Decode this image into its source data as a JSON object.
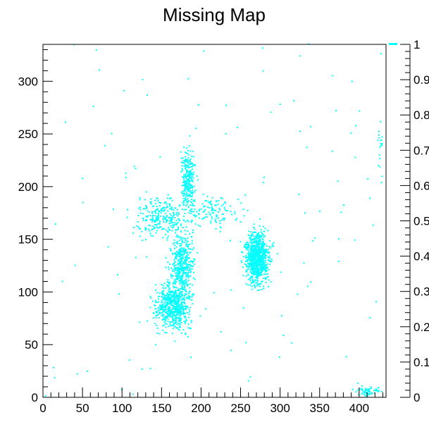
{
  "chart_data": {
    "type": "heatmap",
    "title": "Missing Map",
    "xlabel": "",
    "ylabel": "",
    "xlim": [
      0,
      434
    ],
    "ylim": [
      0,
      335
    ],
    "xticks": [
      0,
      50,
      100,
      150,
      200,
      250,
      300,
      350,
      400
    ],
    "yticks": [
      0,
      50,
      100,
      150,
      200,
      250,
      300
    ],
    "zlim": [
      0,
      1
    ],
    "zticks": [
      "0",
      "0.1",
      "0.2",
      "0.3",
      "0.4",
      "0.5",
      "0.6",
      "0.7",
      "0.8",
      "0.9",
      "1"
    ],
    "grid": false,
    "palette": {
      "cell_color": "#00ffff",
      "frame_color": "#000000"
    },
    "clusters": [
      {
        "center": [
          165,
          85
        ],
        "spread": [
          16,
          15
        ],
        "density": 650
      },
      {
        "center": [
          175,
          125
        ],
        "spread": [
          10,
          20
        ],
        "density": 420
      },
      {
        "center": [
          183,
          205
        ],
        "spread": [
          6,
          22
        ],
        "density": 260
      },
      {
        "center": [
          150,
          170
        ],
        "spread": [
          24,
          13
        ],
        "density": 260
      },
      {
        "center": [
          270,
          132
        ],
        "spread": [
          10,
          17
        ],
        "density": 900
      },
      {
        "center": [
          215,
          175
        ],
        "spread": [
          30,
          10
        ],
        "density": 120
      },
      {
        "center": [
          410,
          5
        ],
        "spread": [
          10,
          3
        ],
        "density": 60
      },
      {
        "center": [
          427,
          240
        ],
        "spread": [
          3,
          15
        ],
        "density": 18
      }
    ],
    "scatter_points": 120
  }
}
